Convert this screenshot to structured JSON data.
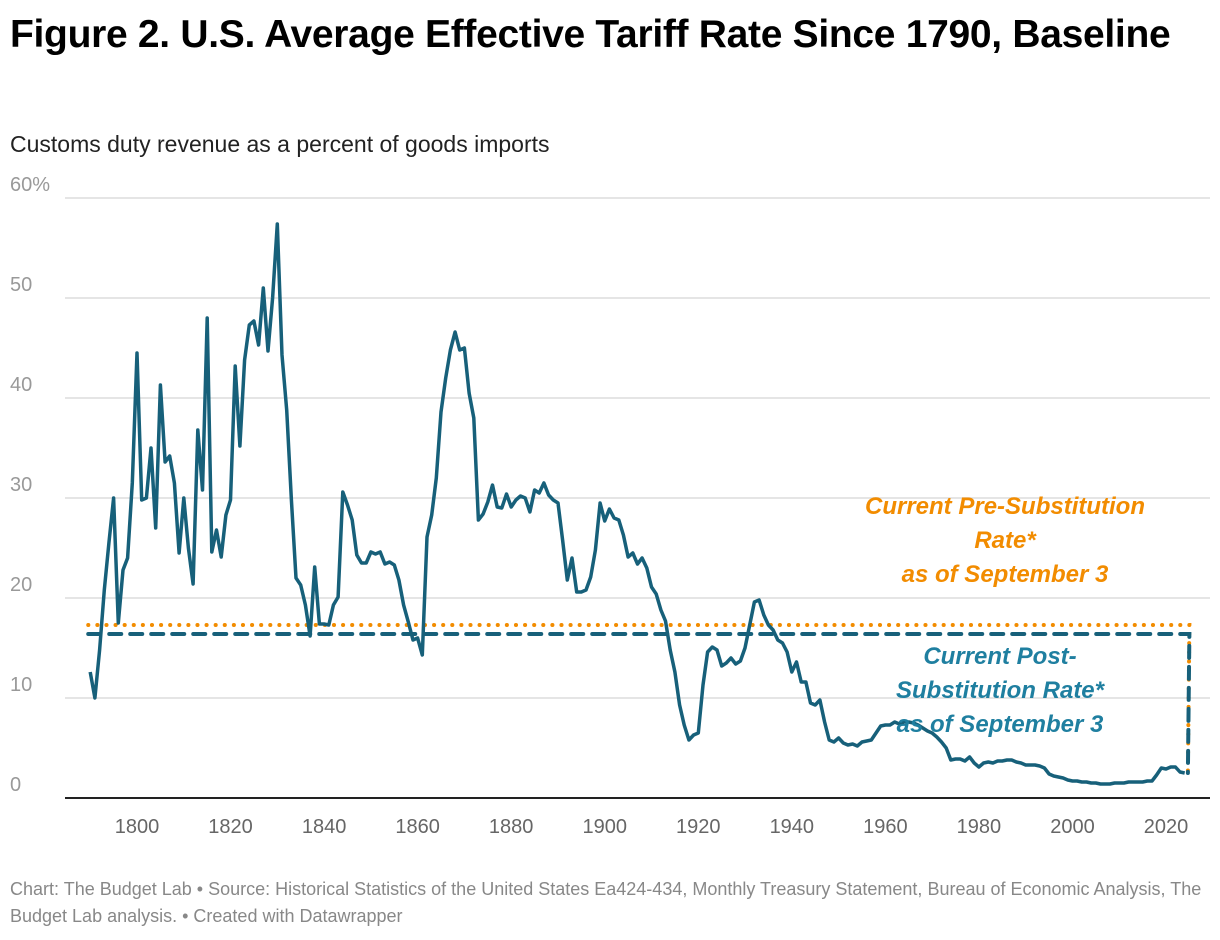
{
  "title": "Figure 2. U.S. Average Effective Tariff Rate Since 1790, Baseline",
  "subtitle": "Customs duty revenue as a percent of goods imports",
  "footer": "Chart: The Budget Lab • Source: Historical Statistics of the United States Ea424-434, Monthly Treasury Statement, Bureau of Economic Analysis, The Budget Lab analysis. • Created with Datawrapper",
  "colors": {
    "line": "#17607a",
    "pre": "#f28c00",
    "post": "#17607a",
    "post_text": "#1f7fa0",
    "grid": "#e5e5e5",
    "tick": "#999999"
  },
  "chart_data": {
    "type": "line",
    "title": "Figure 2. U.S. Average Effective Tariff Rate Since 1790, Baseline",
    "subtitle": "Customs duty revenue as a percent of goods imports",
    "xlim": [
      1788,
      2027
    ],
    "ylim": [
      0,
      60
    ],
    "y_ticks": [
      0,
      10,
      20,
      30,
      40,
      50,
      60
    ],
    "y_tick_labels": [
      "0",
      "10",
      "20",
      "30",
      "40",
      "50",
      "60%"
    ],
    "x_ticks": [
      1800,
      1820,
      1840,
      1860,
      1880,
      1900,
      1920,
      1940,
      1960,
      1980,
      2000,
      2020
    ],
    "x_tick_labels": [
      "1800",
      "1820",
      "1840",
      "1860",
      "1880",
      "1900",
      "1920",
      "1940",
      "1960",
      "1980",
      "2000",
      "2020"
    ],
    "grid": "horizontal",
    "start_year": 1790,
    "values": [
      12.6,
      10,
      14.8,
      20.8,
      25.5,
      30,
      17.5,
      22.8,
      24,
      31.5,
      44.5,
      29.8,
      30,
      35,
      27,
      41.3,
      33.6,
      34.2,
      31.5,
      24.5,
      30,
      25,
      21.4,
      36.8,
      30.8,
      48,
      24.6,
      26.8,
      24.1,
      28.3,
      29.8,
      43.2,
      35.2,
      43.8,
      47.3,
      47.7,
      45.3,
      51,
      44.7,
      50,
      57.4,
      44.3,
      38.8,
      29.8,
      22,
      21.3,
      19.3,
      16.2,
      23.1,
      17.4,
      17.4,
      17.3,
      19.3,
      20.1,
      30.6,
      29.3,
      27.8,
      24.3,
      23.5,
      23.5,
      24.6,
      24.4,
      24.6,
      23.4,
      23.6,
      23.3,
      21.8,
      19.3,
      17.6,
      15.8,
      16,
      14.3,
      26.1,
      28.3,
      32,
      38.6,
      42,
      44.8,
      46.6,
      44.8,
      45,
      40.5,
      38,
      27.8,
      28.4,
      29.6,
      31.3,
      29.1,
      29,
      30.4,
      29.1,
      29.8,
      30.2,
      30,
      28.6,
      30.8,
      30.5,
      31.5,
      30.3,
      29.8,
      29.5,
      25.8,
      21.8,
      24,
      20.6,
      20.6,
      20.8,
      22.1,
      24.8,
      29.5,
      27.7,
      28.9,
      28,
      27.8,
      26.3,
      24.1,
      24.5,
      23.4,
      24,
      23,
      21.1,
      20.4,
      18.8,
      17.7,
      14.8,
      12.6,
      9.3,
      7.3,
      5.8,
      6.3,
      6.5,
      11.3,
      14.6,
      15.1,
      14.8,
      13.2,
      13.5,
      14,
      13.4,
      13.7,
      15,
      17.3,
      19.6,
      19.8,
      18.3,
      17.3,
      16.8,
      15.8,
      15.5,
      14.6,
      12.6,
      13.6,
      11.6,
      11.6,
      9.5,
      9.3,
      9.8,
      7.6,
      5.8,
      5.6,
      6,
      5.5,
      5.3,
      5.4,
      5.2,
      5.6,
      5.7,
      5.8,
      6.5,
      7.2,
      7.3,
      7.3,
      7.6,
      7.4,
      7.6,
      7.6,
      7.5,
      7.3,
      7,
      6.7,
      6.5,
      6.1,
      5.6,
      5,
      3.8,
      3.9,
      3.9,
      3.7,
      4.1,
      3.5,
      3.1,
      3.5,
      3.6,
      3.5,
      3.7,
      3.7,
      3.8,
      3.8,
      3.6,
      3.5,
      3.3,
      3.3,
      3.3,
      3.2,
      3,
      2.4,
      2.2,
      2.1,
      2,
      1.8,
      1.7,
      1.7,
      1.6,
      1.6,
      1.5,
      1.5,
      1.4,
      1.4,
      1.4,
      1.5,
      1.5,
      1.5,
      1.6,
      1.6,
      1.6,
      1.6,
      1.7,
      1.7,
      2.3,
      3,
      2.9,
      3.1,
      3.1,
      2.6,
      2.5
    ],
    "reference_lines": [
      {
        "label_lines": [
          "Current Pre-Substitution",
          "Rate*",
          "as of September 3"
        ],
        "value": 17.3,
        "end_year": 2025,
        "style": "dotted",
        "color": "#f28c00"
      },
      {
        "label_lines": [
          "Current Post-",
          "Substitution Rate*",
          "as of September 3"
        ],
        "value": 16.4,
        "end_year": 2025,
        "style": "dashed",
        "color": "#17607a"
      }
    ]
  }
}
